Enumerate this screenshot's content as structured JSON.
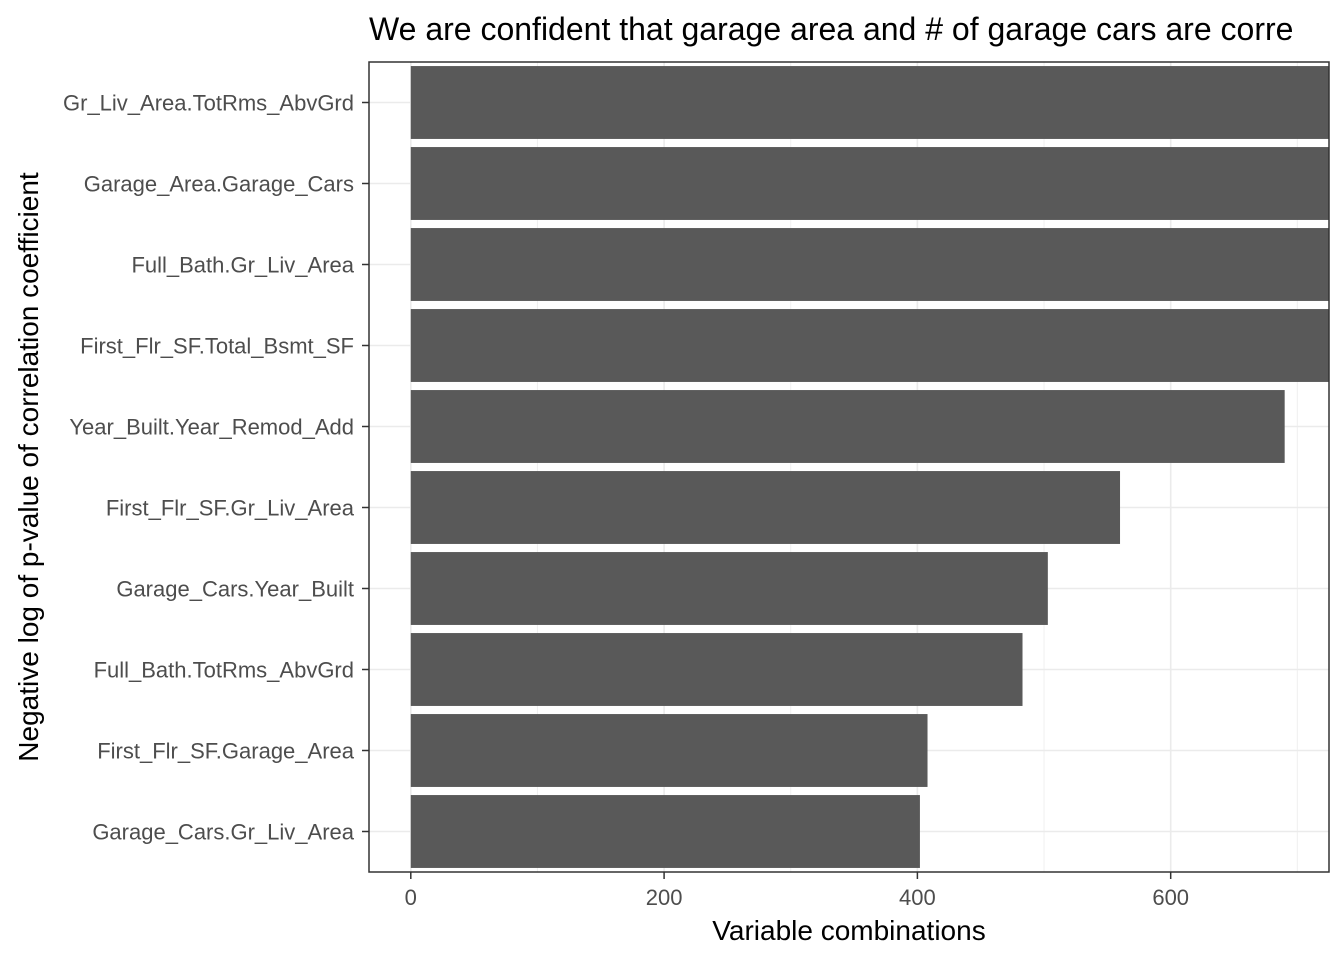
{
  "chart_data": {
    "type": "bar",
    "orientation": "horizontal",
    "title": "We are confident that garage area and # of garage cars are corre",
    "xlabel": "Variable combinations",
    "ylabel": "Negative log of p-value of correlation coefficient",
    "categories": [
      "Gr_Liv_Area.TotRms_AbvGrd",
      "Garage_Area.Garage_Cars",
      "Full_Bath.Gr_Liv_Area",
      "First_Flr_SF.Total_Bsmt_SF",
      "Year_Built.Year_Remod_Add",
      "First_Flr_SF.Gr_Liv_Area",
      "Garage_Cars.Year_Built",
      "Full_Bath.TotRms_AbvGrd",
      "First_Flr_SF.Garage_Area",
      "Garage_Cars.Gr_Liv_Area"
    ],
    "values": [
      725,
      725,
      725,
      725,
      690,
      560,
      503,
      483,
      408,
      402
    ],
    "xlim": [
      -33,
      725
    ],
    "xticks": [
      0,
      200,
      400,
      600
    ],
    "xtick_labels": [
      "0",
      "200",
      "400",
      "600"
    ],
    "grid": true,
    "bar_color": "#595959"
  }
}
